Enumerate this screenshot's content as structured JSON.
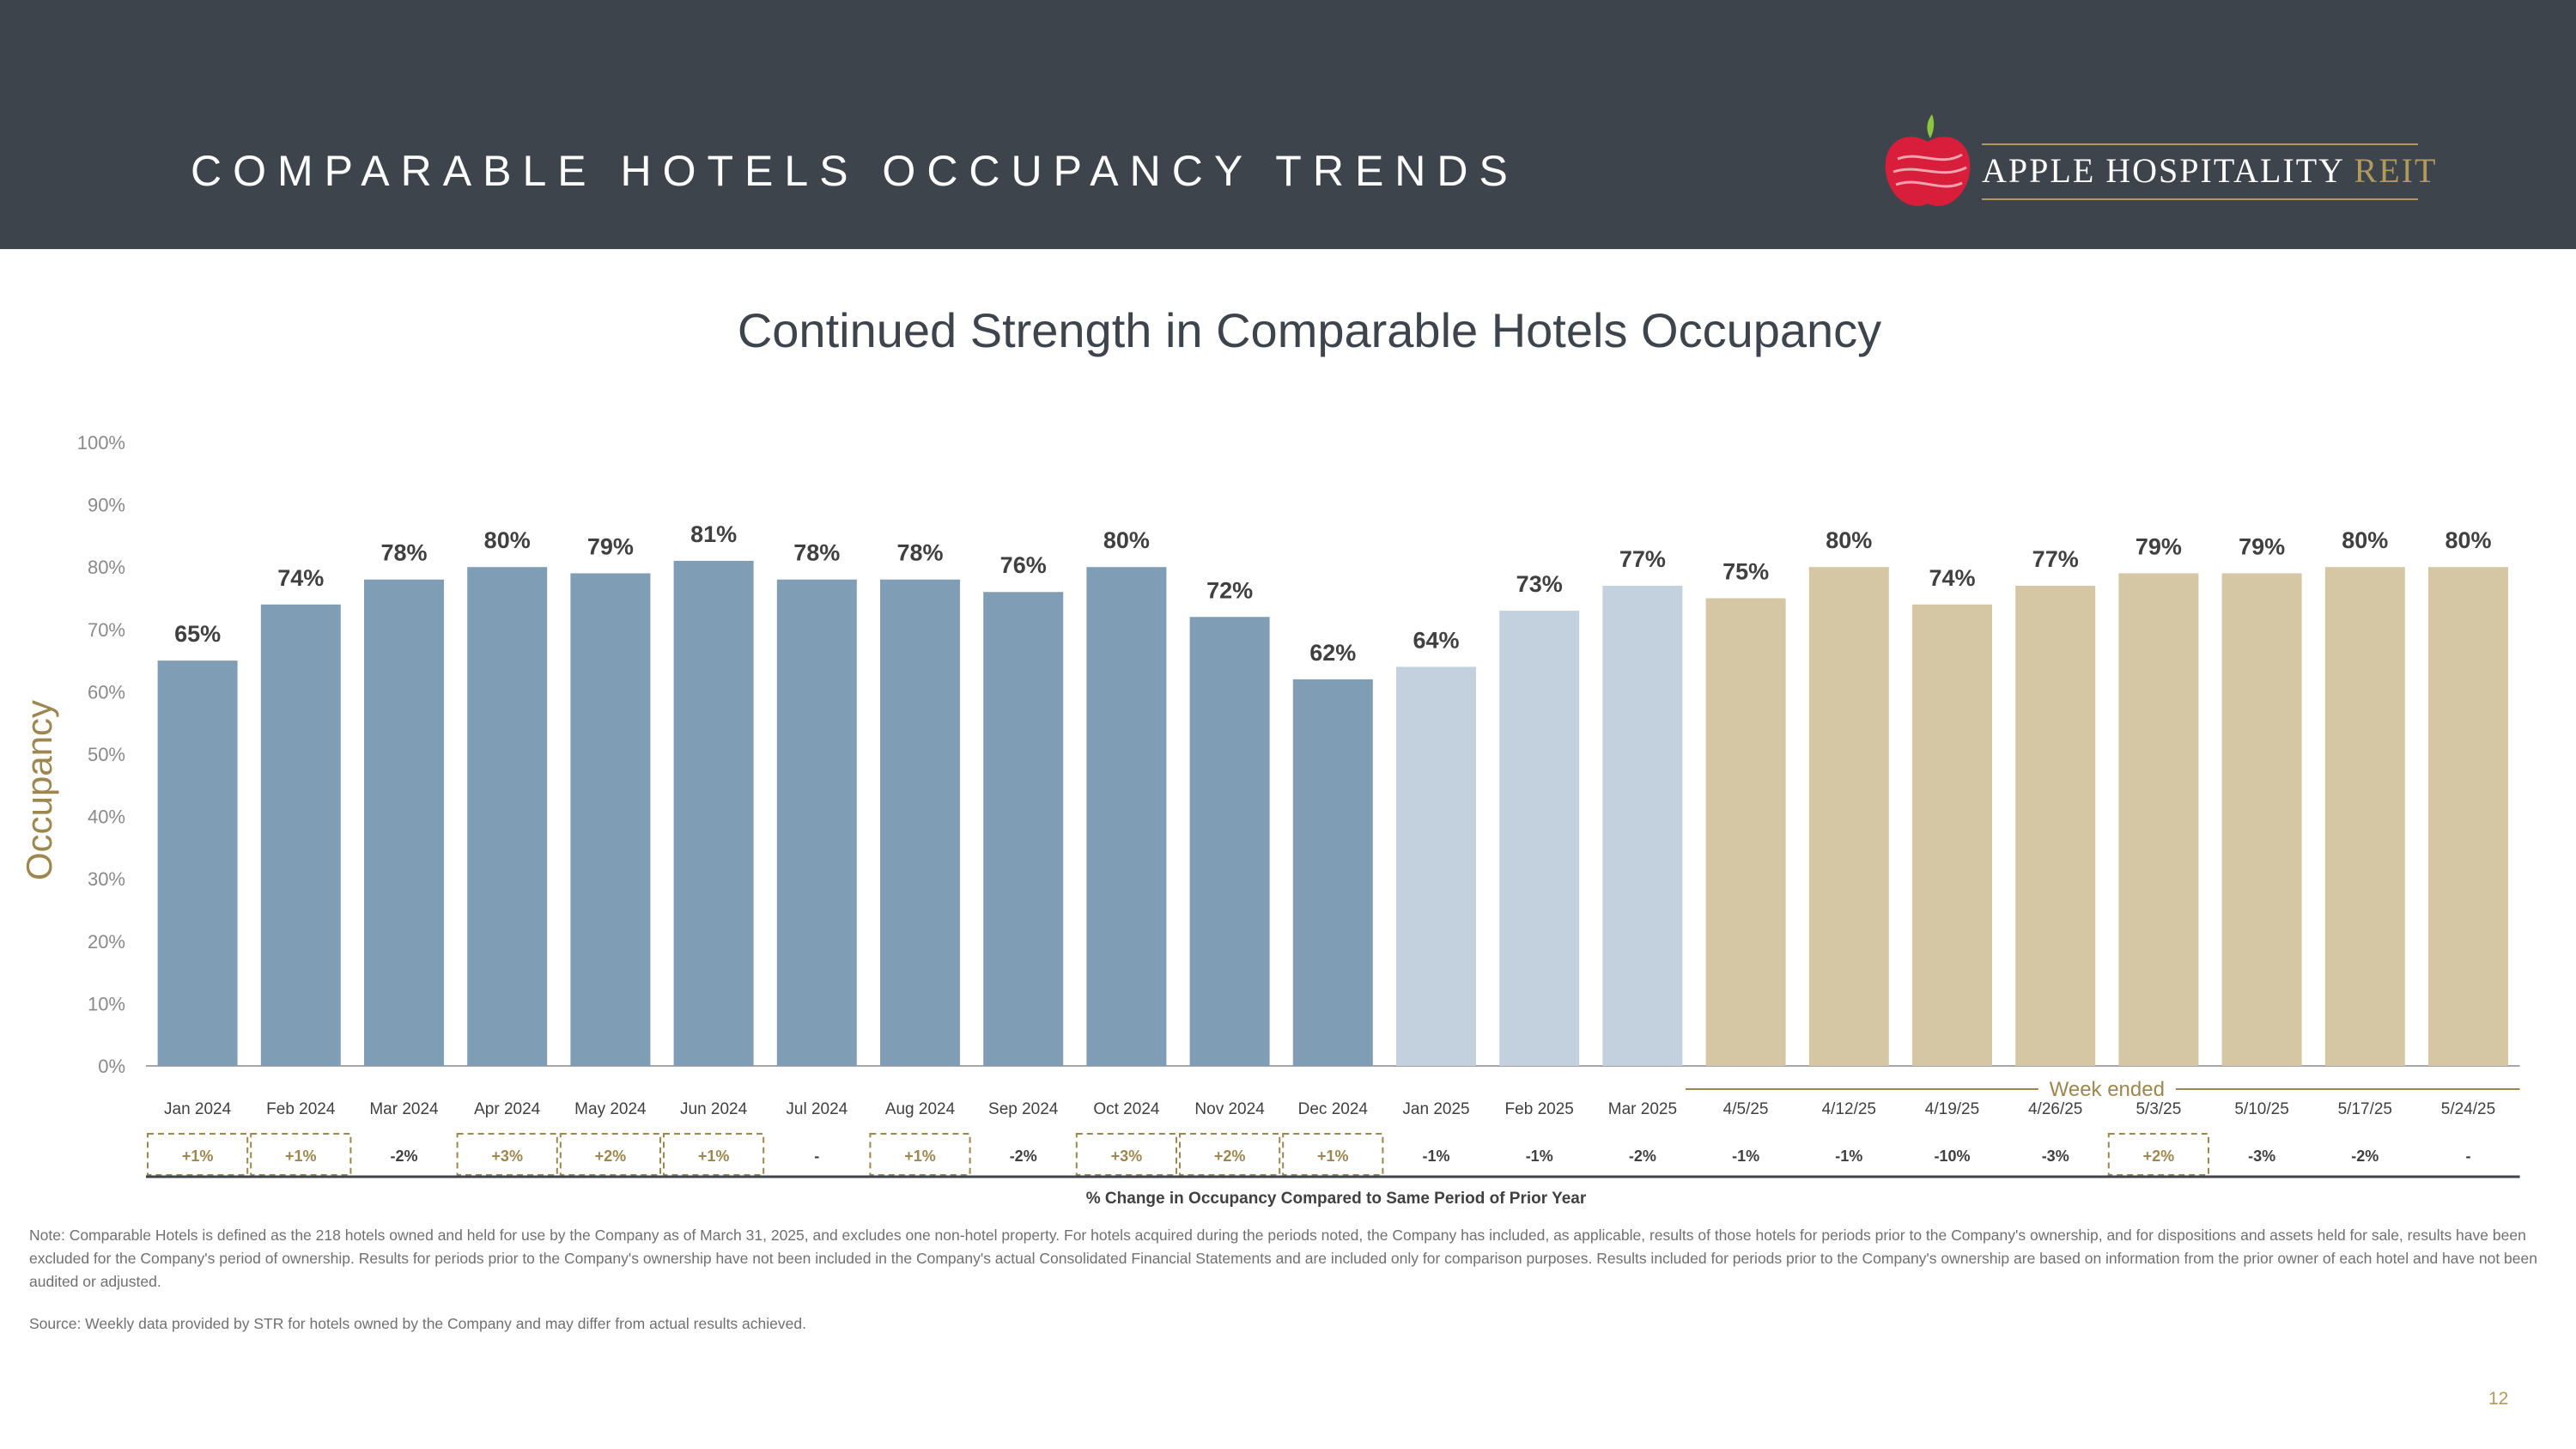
{
  "header": {
    "title": "COMPARABLE HOTELS OCCUPANCY TRENDS",
    "logo": {
      "main": "APPLE HOSPITALITY",
      "accent": "REIT"
    }
  },
  "colors": {
    "monthly2024": "#7f9db5",
    "monthly2025": "#c2d1dd",
    "weekly": "#d5c6a4",
    "gold": "#9d874f",
    "header": "#3d444c"
  },
  "chart_data": {
    "type": "bar",
    "title": "Continued Strength in Comparable Hotels Occupancy",
    "ylabel": "Occupancy",
    "xlabel": "% Change in Occupancy Compared to Same Period of Prior Year",
    "ylim": [
      0,
      100
    ],
    "yticks": [
      "0%",
      "10%",
      "20%",
      "30%",
      "40%",
      "50%",
      "60%",
      "70%",
      "80%",
      "90%",
      "100%"
    ],
    "categories": [
      "Jan 2024",
      "Feb 2024",
      "Mar 2024",
      "Apr 2024",
      "May 2024",
      "Jun 2024",
      "Jul 2024",
      "Aug 2024",
      "Sep 2024",
      "Oct 2024",
      "Nov 2024",
      "Dec 2024",
      "Jan 2025",
      "Feb 2025",
      "Mar 2025",
      "4/5/25",
      "4/12/25",
      "4/19/25",
      "4/26/25",
      "5/3/25",
      "5/10/25",
      "5/17/25",
      "5/24/25"
    ],
    "values": [
      65,
      74,
      78,
      80,
      79,
      81,
      78,
      78,
      76,
      80,
      72,
      62,
      64,
      73,
      77,
      75,
      80,
      74,
      77,
      79,
      79,
      80,
      80
    ],
    "labels": [
      "65%",
      "74%",
      "78%",
      "80%",
      "79%",
      "81%",
      "78%",
      "78%",
      "76%",
      "80%",
      "72%",
      "62%",
      "64%",
      "73%",
      "77%",
      "75%",
      "80%",
      "74%",
      "77%",
      "79%",
      "79%",
      "80%",
      "80%"
    ],
    "groups": [
      "m24",
      "m24",
      "m24",
      "m24",
      "m24",
      "m24",
      "m24",
      "m24",
      "m24",
      "m24",
      "m24",
      "m24",
      "m25",
      "m25",
      "m25",
      "wk",
      "wk",
      "wk",
      "wk",
      "wk",
      "wk",
      "wk",
      "wk"
    ],
    "changes": [
      "+1%",
      "+1%",
      "-2%",
      "+3%",
      "+2%",
      "+1%",
      "-",
      "+1%",
      "-2%",
      "+3%",
      "+2%",
      "+1%",
      "-1%",
      "-1%",
      "-2%",
      "-1%",
      "-1%",
      "-10%",
      "-3%",
      "+2%",
      "-3%",
      "-2%",
      "-"
    ],
    "week_label": "Week ended"
  },
  "footer": {
    "note": "Note: Comparable Hotels is defined as the 218 hotels owned and held for use by the Company as of March 31, 2025, and excludes one non-hotel property. For hotels acquired during the periods noted, the Company has included, as applicable, results of those hotels for periods prior to the Company's ownership, and for dispositions and assets held for sale, results have been excluded for the Company's period of ownership. Results for periods prior to the Company's ownership have not been included in the Company's actual Consolidated Financial Statements and are included only for comparison purposes. Results included for periods prior to the Company's ownership are based on information from the prior owner of each hotel and have not been audited or adjusted.",
    "source": "Source:  Weekly data provided by STR for hotels owned by the Company and may differ from actual results achieved.",
    "page": "12"
  }
}
